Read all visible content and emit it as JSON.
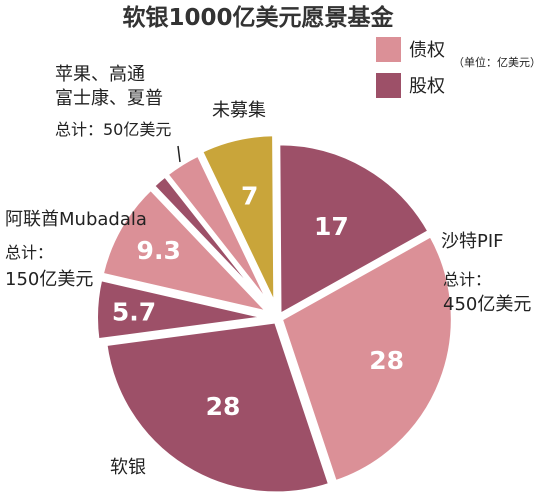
{
  "chart_data": {
    "type": "pie",
    "title": "软银1000亿美元愿景基金",
    "unit_note": "（单位：亿美元）",
    "legend": [
      {
        "key": "debt",
        "label": "债权",
        "color": "#DB9097"
      },
      {
        "key": "equity",
        "label": "股权",
        "color": "#9D5068"
      }
    ],
    "slices": [
      {
        "investor": "pif",
        "kind": "equity",
        "value": 17,
        "label": "17",
        "color": "#9D5068"
      },
      {
        "investor": "pif",
        "kind": "debt",
        "value": 28,
        "label": "28",
        "color": "#DB9097"
      },
      {
        "investor": "softbank",
        "kind": "equity",
        "value": 28,
        "label": "28",
        "color": "#9D5068"
      },
      {
        "investor": "mubadala",
        "kind": "equity",
        "value": 5.7,
        "label": "5.7",
        "color": "#9D5068"
      },
      {
        "investor": "mubadala",
        "kind": "debt",
        "value": 9.3,
        "label": "9.3",
        "color": "#DB9097"
      },
      {
        "investor": "others",
        "kind": "equity",
        "value": 1.5,
        "label": "",
        "color": "#9D5068"
      },
      {
        "investor": "others",
        "kind": "debt",
        "value": 3.5,
        "label": "",
        "color": "#DB9097"
      },
      {
        "investor": "unraised",
        "kind": "unraised",
        "value": 7,
        "label": "7",
        "color": "#C9A53A"
      }
    ],
    "investors": {
      "pif": {
        "name": "沙特PIF",
        "total_label": "总计：",
        "total": "450亿美元"
      },
      "softbank": {
        "name": "软银"
      },
      "mubadala": {
        "name": "阿联酋Mubadala",
        "total_label": "总计：",
        "total": "150亿美元"
      },
      "others": {
        "name_line1": "苹果、高通",
        "name_line2": "富士康、夏普",
        "total": "总计：50亿美元"
      },
      "unraised": {
        "name": "未募集"
      }
    }
  }
}
